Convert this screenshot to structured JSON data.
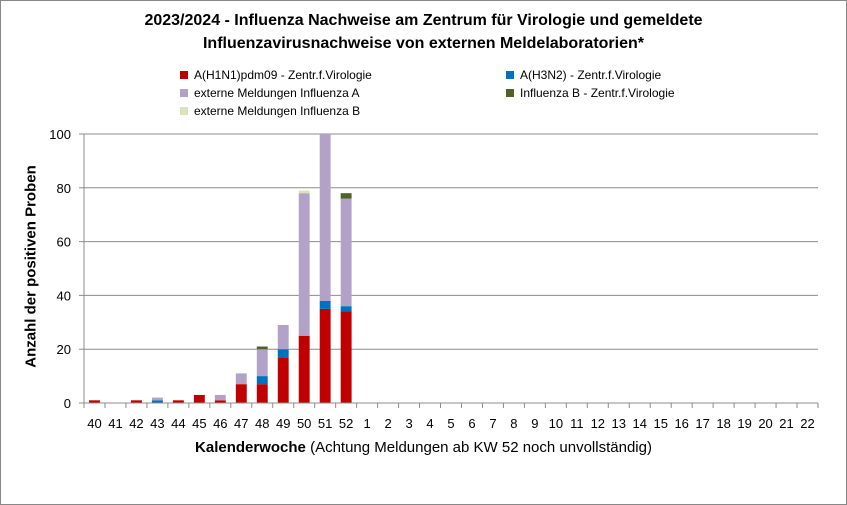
{
  "chart_data": {
    "type": "bar",
    "stacked": true,
    "title_line1": "2023/2024 - Influenza Nachweise am Zentrum für Virologie und gemeldete",
    "title_line2": "Influenzavirusnachweise von externen Meldelaboratorien*",
    "xlabel_bold": "Kalenderwoche",
    "xlabel_rest": " (Achtung Meldungen ab KW 52 noch unvollständig)",
    "ylabel": "Anzahl der positiven Proben",
    "ylim": [
      0,
      100
    ],
    "yticks": [
      0,
      20,
      40,
      60,
      80,
      100
    ],
    "grid": true,
    "legend_position": "top",
    "categories": [
      "40",
      "41",
      "42",
      "43",
      "44",
      "45",
      "46",
      "47",
      "48",
      "49",
      "50",
      "51",
      "52",
      "1",
      "2",
      "3",
      "4",
      "5",
      "6",
      "7",
      "8",
      "9",
      "10",
      "11",
      "12",
      "13",
      "14",
      "15",
      "16",
      "17",
      "18",
      "19",
      "20",
      "21",
      "22"
    ],
    "series": [
      {
        "name": "A(H1N1)pdm09 - Zentr.f.Virologie",
        "color": "#c00000",
        "values": [
          1,
          0,
          1,
          0,
          1,
          3,
          1,
          7,
          7,
          17,
          25,
          35,
          34,
          0,
          0,
          0,
          0,
          0,
          0,
          0,
          0,
          0,
          0,
          0,
          0,
          0,
          0,
          0,
          0,
          0,
          0,
          0,
          0,
          0,
          0
        ]
      },
      {
        "name": "A(H3N2)  - Zentr.f.Virologie",
        "color": "#0070c0",
        "values": [
          0,
          0,
          0,
          1,
          0,
          0,
          0,
          0,
          3,
          3,
          0,
          3,
          2,
          0,
          0,
          0,
          0,
          0,
          0,
          0,
          0,
          0,
          0,
          0,
          0,
          0,
          0,
          0,
          0,
          0,
          0,
          0,
          0,
          0,
          0
        ]
      },
      {
        "name": "externe Meldungen Influenza A",
        "color": "#b3a2c7",
        "values": [
          0,
          0,
          0,
          1,
          0,
          0,
          2,
          4,
          10,
          9,
          53,
          62,
          40,
          0,
          0,
          0,
          0,
          0,
          0,
          0,
          0,
          0,
          0,
          0,
          0,
          0,
          0,
          0,
          0,
          0,
          0,
          0,
          0,
          0,
          0
        ]
      },
      {
        "name": "Influenza B - Zentr.f.Virologie",
        "color": "#4f6228",
        "values": [
          0,
          0,
          0,
          0,
          0,
          0,
          0,
          0,
          1,
          0,
          0,
          0,
          2,
          0,
          0,
          0,
          0,
          0,
          0,
          0,
          0,
          0,
          0,
          0,
          0,
          0,
          0,
          0,
          0,
          0,
          0,
          0,
          0,
          0,
          0
        ]
      },
      {
        "name": "externe Meldungen Influenza B",
        "color": "#d7e4bd",
        "values": [
          0,
          0,
          0,
          0,
          0,
          0,
          0,
          0,
          0,
          0,
          1,
          0,
          0,
          0,
          0,
          0,
          0,
          0,
          0,
          0,
          0,
          0,
          0,
          0,
          0,
          0,
          0,
          0,
          0,
          0,
          0,
          0,
          0,
          0,
          0
        ]
      }
    ]
  }
}
